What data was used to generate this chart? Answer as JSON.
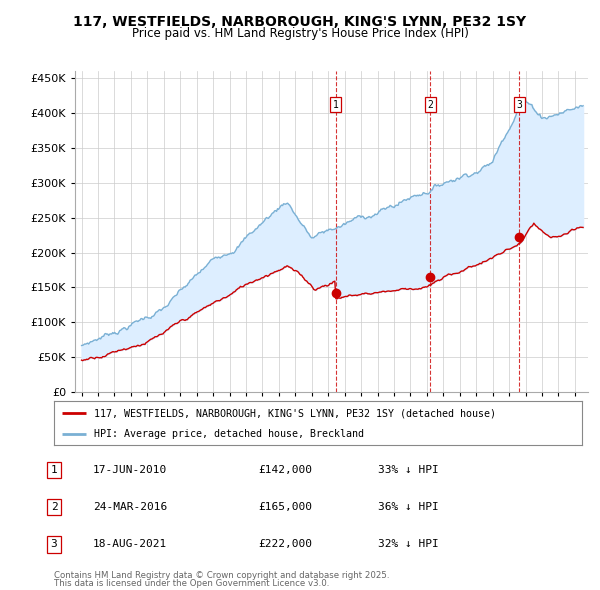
{
  "title": "117, WESTFIELDS, NARBOROUGH, KING'S LYNN, PE32 1SY",
  "subtitle": "Price paid vs. HM Land Registry's House Price Index (HPI)",
  "legend_line1": "117, WESTFIELDS, NARBOROUGH, KING'S LYNN, PE32 1SY (detached house)",
  "legend_line2": "HPI: Average price, detached house, Breckland",
  "transactions": [
    {
      "num": 1,
      "date": "17-JUN-2010",
      "price": "£142,000",
      "pct": "33% ↓ HPI",
      "year": 2010.46,
      "price_val": 142000
    },
    {
      "num": 2,
      "date": "24-MAR-2016",
      "price": "£165,000",
      "pct": "36% ↓ HPI",
      "year": 2016.22,
      "price_val": 165000
    },
    {
      "num": 3,
      "date": "18-AUG-2021",
      "price": "£222,000",
      "pct": "32% ↓ HPI",
      "year": 2021.63,
      "price_val": 222000
    }
  ],
  "footnote1": "Contains HM Land Registry data © Crown copyright and database right 2025.",
  "footnote2": "This data is licensed under the Open Government Licence v3.0.",
  "hpi_color": "#7ab0d4",
  "hpi_fill_color": "#ddeeff",
  "price_color": "#cc0000",
  "transaction_color": "#cc0000",
  "background_color": "#ffffff",
  "grid_color": "#cccccc",
  "ylim": [
    0,
    460000
  ],
  "yticks": [
    0,
    50000,
    100000,
    150000,
    200000,
    250000,
    300000,
    350000,
    400000,
    450000
  ],
  "xlim_start": 1994.6,
  "xlim_end": 2025.8
}
